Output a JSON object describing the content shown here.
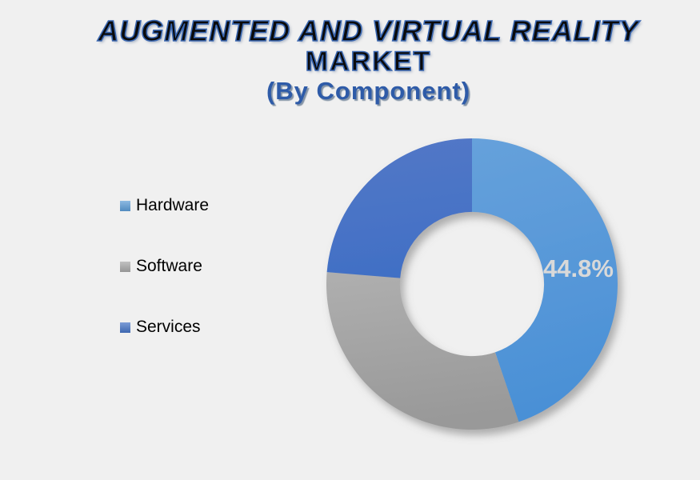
{
  "background_color": "#F0F0F0",
  "title": {
    "line1": "AUGMENTED AND VIRTUAL REALITY",
    "line2": "MARKET",
    "line3": "(By Component)",
    "fill_color": "#0A0A0A",
    "outline_color": "#3A67B1",
    "subtitle_color": "#2E5BA8"
  },
  "legend": {
    "position": "left",
    "items": [
      {
        "label": "Hardware",
        "color": "#5B9BD5"
      },
      {
        "label": "Software",
        "color": "#A6A6A6"
      },
      {
        "label": "Services",
        "color": "#4472C4"
      }
    ]
  },
  "data_label": {
    "text": "44.8%",
    "color": "#D9D9D9"
  },
  "chart_data": {
    "type": "pie",
    "subtype": "donut",
    "title": "AUGMENTED AND VIRTUAL REALITY MARKET (By Component)",
    "categories": [
      "Hardware",
      "Software",
      "Services"
    ],
    "values": [
      44.8,
      31.5,
      23.7
    ],
    "unit": "%",
    "data_labels": [
      {
        "category": "Hardware",
        "text": "44.8%"
      }
    ],
    "start_angle_deg": 0,
    "direction": "clockwise",
    "donut_hole_ratio": 0.495,
    "legend_position": "left",
    "colors": {
      "Hardware": "#5B9BD5",
      "Software": "#A6A6A6",
      "Services": "#4472C4"
    },
    "slice_gradients": {
      "Hardware": [
        "#66A1DB",
        "#4A90D6"
      ],
      "Software": [
        "#AFAFAF",
        "#999999"
      ],
      "Services": [
        "#5478C7",
        "#4170C5"
      ]
    }
  }
}
